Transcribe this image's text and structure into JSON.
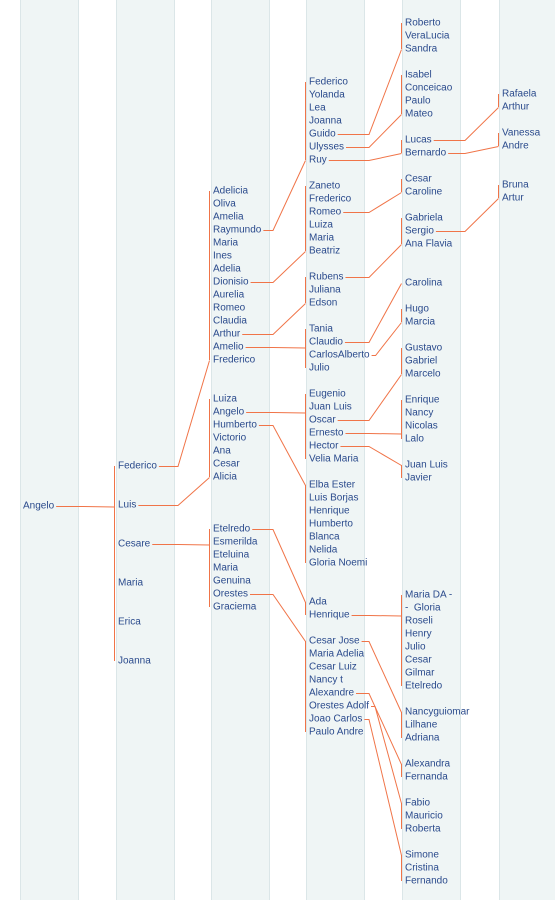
{
  "groups": [
    {
      "names": [
        "Angelo"
      ]
    },
    {
      "names": [
        "Federico",
        "Luis",
        "Cesare",
        "Maria",
        "Erica",
        "Joanna"
      ]
    },
    {
      "names": [
        "Adelicia",
        "Oliva",
        "Amelia",
        "Raymundo",
        "Maria",
        "Ines",
        "Adelia",
        "Dionisio",
        "Aurelia",
        "Romeo",
        "Claudia",
        "Arthur",
        "Amelio",
        "Frederico"
      ]
    },
    {
      "names": [
        "Luiza",
        "Angelo",
        "Humberto",
        "Victorio",
        "Ana",
        "Cesar",
        "Alicia"
      ]
    },
    {
      "names": [
        "Etelredo",
        "Esmerilda",
        "Eteluina",
        "Maria",
        "Genuina",
        "Orestes",
        "Graciema"
      ]
    },
    {
      "names": [
        "Federico",
        "Yolanda",
        "Lea",
        "Joanna",
        "Guido",
        "Ulysses",
        "Ruy"
      ]
    },
    {
      "names": [
        "Zaneto",
        "Frederico",
        "Romeo",
        "Luiza",
        "Maria",
        "Beatriz"
      ]
    },
    {
      "names": [
        "Rubens",
        "Juliana",
        "Edson"
      ]
    },
    {
      "names": [
        "Tania",
        "Claudio",
        "CarlosAlberto",
        "Julio"
      ]
    },
    {
      "names": [
        "Eugenio",
        "Juan Luis",
        "Oscar",
        "Ernesto",
        "Hector",
        "Velia Maria"
      ]
    },
    {
      "names": [
        "Elba Ester",
        "Luis Borjas",
        "Henrique",
        "Humberto",
        "Blanca",
        "Nelida",
        "Gloria Noemi"
      ]
    },
    {
      "names": [
        "Ada",
        "Henrique"
      ]
    },
    {
      "names": [
        "Cesar Jose",
        "Maria Adelia",
        "Cesar Luiz",
        "Nancy t",
        "Alexandre",
        "Orestes Adolf",
        "Joao Carlos",
        "Paulo Andre"
      ]
    },
    {
      "names": [
        "Roberto",
        "VeraLucia",
        "Sandra"
      ]
    },
    {
      "names": [
        "Isabel",
        "Conceicao",
        "Paulo",
        "Mateo"
      ]
    },
    {
      "names": [
        "Lucas",
        "Bernardo"
      ]
    },
    {
      "names": [
        "Cesar",
        "Caroline"
      ]
    },
    {
      "names": [
        "Gabriela",
        "Sergio",
        "Ana Flavia"
      ]
    },
    {
      "names": [
        "Carolina"
      ]
    },
    {
      "names": [
        "Hugo",
        "Marcia"
      ]
    },
    {
      "names": [
        "Gustavo",
        "Gabriel",
        "Marcelo"
      ]
    },
    {
      "names": [
        "Enrique",
        "Nancy",
        "Nicolas",
        "Lalo"
      ]
    },
    {
      "names": [
        "Juan Luis",
        "Javier"
      ]
    },
    {
      "names": [
        "Maria DA -",
        "-  Gloria",
        "Roseli",
        "Henry",
        "Julio",
        "Cesar",
        "Gilmar",
        "Etelredo"
      ]
    },
    {
      "names": [
        "Nancyguiomar",
        "Lilhane",
        "Adriana"
      ]
    },
    {
      "names": [
        "Alexandra",
        "Fernanda"
      ]
    },
    {
      "names": [
        "Fabio",
        "Mauricio",
        "Roberta"
      ]
    },
    {
      "names": [
        "Simone",
        "Cristina",
        "Fernando"
      ]
    },
    {
      "names": [
        "Rafaela",
        "Arthur"
      ]
    },
    {
      "names": [
        "Vanessa",
        "Andre"
      ]
    },
    {
      "names": [
        "Bruna",
        "Artur"
      ]
    }
  ]
}
